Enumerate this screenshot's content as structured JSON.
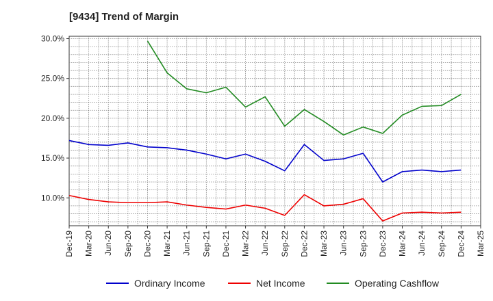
{
  "chart_data": {
    "type": "line",
    "title": "[9434]  Trend of Margin",
    "xlabel": "",
    "ylabel": "",
    "ylim": [
      6.5,
      30.3
    ],
    "yticks": [
      10,
      15,
      20,
      25,
      30
    ],
    "ytick_labels": [
      "10.0%",
      "15.0%",
      "20.0%",
      "25.0%",
      "30.0%"
    ],
    "x_labels": [
      "Dec-19",
      "Mar-20",
      "Jun-20",
      "Sep-20",
      "Dec-20",
      "Mar-21",
      "Jun-21",
      "Sep-21",
      "Dec-21",
      "Mar-22",
      "Jun-22",
      "Sep-22",
      "Dec-22",
      "Mar-23",
      "Jun-23",
      "Sep-23",
      "Dec-23",
      "Mar-24",
      "Jun-24",
      "Sep-24",
      "Dec-24",
      "Mar-25"
    ],
    "grid": true,
    "legend_position": "bottom",
    "series": [
      {
        "name": "Ordinary Income",
        "color": "#0000cc",
        "values": [
          17.2,
          16.7,
          16.6,
          16.9,
          16.4,
          16.3,
          16.0,
          15.5,
          14.9,
          15.5,
          14.6,
          13.4,
          16.7,
          14.7,
          14.9,
          15.6,
          12.0,
          13.3,
          13.5,
          13.3,
          13.5,
          null
        ]
      },
      {
        "name": "Net Income",
        "color": "#ee0000",
        "values": [
          10.3,
          9.8,
          9.5,
          9.4,
          9.4,
          9.5,
          9.1,
          8.8,
          8.6,
          9.1,
          8.7,
          7.8,
          10.4,
          9.0,
          9.2,
          9.9,
          7.1,
          8.1,
          8.2,
          8.1,
          8.2,
          null
        ]
      },
      {
        "name": "Operating Cashflow",
        "color": "#228b22",
        "values": [
          null,
          null,
          null,
          null,
          29.7,
          25.7,
          23.7,
          23.2,
          23.9,
          21.4,
          22.7,
          19.0,
          21.1,
          19.6,
          17.9,
          18.9,
          18.1,
          20.4,
          21.5,
          21.6,
          23.0,
          null
        ]
      }
    ]
  }
}
